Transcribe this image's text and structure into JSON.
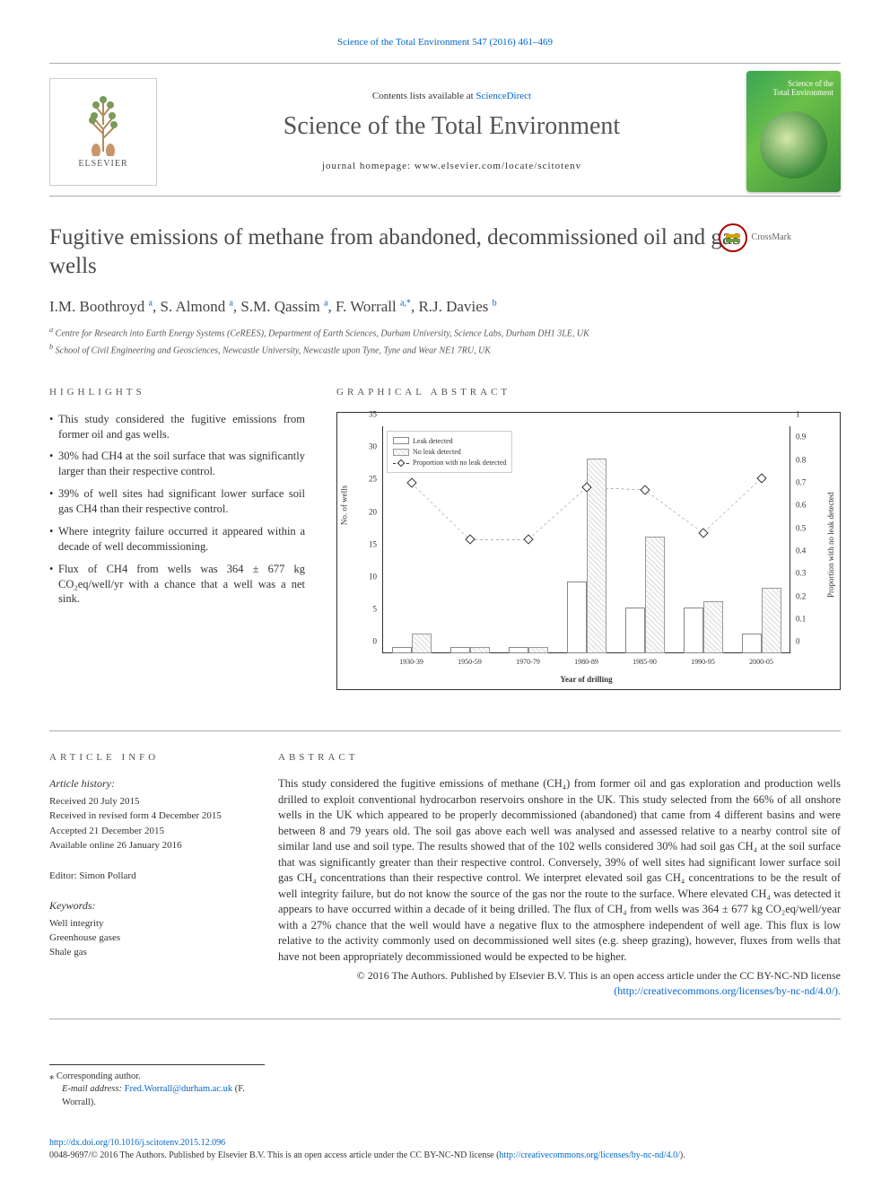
{
  "header": {
    "citation_link": "Science of the Total Environment 547 (2016) 461–469",
    "contents_line_pre": "Contents lists available at ",
    "contents_line_link": "ScienceDirect",
    "journal_name": "Science of the Total Environment",
    "homepage_line": "journal homepage: www.elsevier.com/locate/scitotenv",
    "elsevier_label": "ELSEVIER",
    "cover_title_line1": "Science of the",
    "cover_title_line2": "Total Environment",
    "crossmark_label": "CrossMark"
  },
  "article": {
    "title": "Fugitive emissions of methane from abandoned, decommissioned oil and gas wells",
    "authors": [
      {
        "name": "I.M. Boothroyd",
        "sup": "a"
      },
      {
        "name": "S. Almond",
        "sup": "a"
      },
      {
        "name": "S.M. Qassim",
        "sup": "a"
      },
      {
        "name": "F. Worrall",
        "sup": "a,*"
      },
      {
        "name": "R.J. Davies",
        "sup": "b"
      }
    ],
    "affiliations": [
      {
        "sup": "a",
        "text": "Centre for Research into Earth Energy Systems (CeREES), Department of Earth Sciences, Durham University, Science Labs, Durham DH1 3LE, UK"
      },
      {
        "sup": "b",
        "text": "School of Civil Engineering and Geosciences, Newcastle University, Newcastle upon Tyne, Tyne and Wear NE1 7RU, UK"
      }
    ]
  },
  "highlights": {
    "heading": "HIGHLIGHTS",
    "items": [
      "This study considered the fugitive emissions from former oil and gas wells.",
      "30% had CH4 at the soil surface that was significantly larger than their respective control.",
      "39% of well sites had significant lower surface soil gas CH4 than their respective control.",
      "Where integrity failure occurred it appeared within a decade of well decommissioning.",
      "Flux of CH4 from wells was 364 ± 677 kg CO₂eq/well/yr with a chance that a well was a net sink."
    ]
  },
  "graphical_abstract": {
    "heading": "GRAPHICAL ABSTRACT",
    "chart": {
      "type": "bar+line",
      "x_label": "Year of drilling",
      "y_label_left": "No. of wells",
      "y_label_right": "Proportion with no leak detected",
      "categories": [
        "1930-39",
        "1950-59",
        "1970-79",
        "1980-89",
        "1985-90",
        "1990-95",
        "2000-05"
      ],
      "y_left_ticks": [
        0,
        5,
        10,
        15,
        20,
        25,
        30,
        35
      ],
      "y_left_max": 35,
      "y_right_ticks": [
        0,
        0.1,
        0.2,
        0.3,
        0.4,
        0.5,
        0.6,
        0.7,
        0.8,
        0.9,
        1
      ],
      "y_right_max": 1,
      "series": {
        "leak_detected": {
          "label": "Leak detected",
          "values": [
            1,
            1,
            1,
            11,
            7,
            7,
            3
          ],
          "fill": "#ffffff",
          "border": "#888888"
        },
        "no_leak_detected": {
          "label": "No leak detected",
          "values": [
            3,
            1,
            1,
            30,
            18,
            8,
            10
          ],
          "fill_pattern": "hatch",
          "border": "#999999"
        },
        "proportion_no_leak": {
          "label": "Proportion with no leak detected",
          "values": [
            0.75,
            0.5,
            0.5,
            0.73,
            0.72,
            0.53,
            0.77
          ],
          "marker": "diamond",
          "line_color": "#333333",
          "line_dash": "3,3"
        }
      },
      "background_color": "#ffffff",
      "axis_color": "#333333",
      "tick_fontsize": 9,
      "label_fontsize": 9,
      "legend_fontsize": 8
    }
  },
  "article_info": {
    "heading": "ARTICLE INFO",
    "history_label": "Article history:",
    "history": [
      "Received 20 July 2015",
      "Received in revised form 4 December 2015",
      "Accepted 21 December 2015",
      "Available online 26 January 2016"
    ],
    "editor_label": "Editor: ",
    "editor": "Simon Pollard",
    "keywords_label": "Keywords:",
    "keywords": [
      "Well integrity",
      "Greenhouse gases",
      "Shale gas"
    ]
  },
  "abstract": {
    "heading": "ABSTRACT",
    "text": "This study considered the fugitive emissions of methane (CH₄) from former oil and gas exploration and production wells drilled to exploit conventional hydrocarbon reservoirs onshore in the UK. This study selected from the 66% of all onshore wells in the UK which appeared to be properly decommissioned (abandoned) that came from 4 different basins and were between 8 and 79 years old. The soil gas above each well was analysed and assessed relative to a nearby control site of similar land use and soil type. The results showed that of the 102 wells considered 30% had soil gas CH₄ at the soil surface that was significantly greater than their respective control. Conversely, 39% of well sites had significant lower surface soil gas CH₄ concentrations than their respective control. We interpret elevated soil gas CH₄ concentrations to be the result of well integrity failure, but do not know the source of the gas nor the route to the surface. Where elevated CH₄ was detected it appears to have occurred within a decade of it being drilled. The flux of CH₄ from wells was 364 ± 677 kg CO₂eq/well/year with a 27% chance that the well would have a negative flux to the atmosphere independent of well age. This flux is low relative to the activity commonly used on decommissioned well sites (e.g. sheep grazing), however, fluxes from wells that have not been appropriately decommissioned would be expected to be higher.",
    "copyright": "© 2016 The Authors. Published by Elsevier B.V. This is an open access article under the CC BY-NC-ND license",
    "license_link": "(http://creativecommons.org/licenses/by-nc-nd/4.0/)."
  },
  "corresponding": {
    "label": "⁎ Corresponding author.",
    "email_label": "E-mail address: ",
    "email": "Fred.Worrall@durham.ac.uk",
    "email_name": " (F. Worrall)."
  },
  "footer": {
    "doi": "http://dx.doi.org/10.1016/j.scitotenv.2015.12.096",
    "issn_line": "0048-9697/© 2016 The Authors. Published by Elsevier B.V. This is an open access article under the CC BY-NC-ND license (",
    "license_link": "http://creativecommons.org/licenses/by-nc-nd/4.0/",
    "issn_line_end": ")."
  },
  "colors": {
    "link": "#0066cc",
    "text": "#333333",
    "heading": "#555555",
    "border": "#aaaaaa"
  }
}
